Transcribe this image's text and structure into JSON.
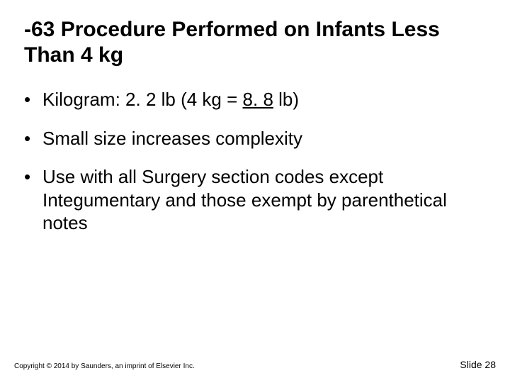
{
  "title": "-63 Procedure Performed on Infants Less Than 4 kg",
  "bullets": {
    "b1_prefix": "Kilogram: 2. 2 lb (4 kg = ",
    "b1_underlined": "8. 8",
    "b1_suffix": " lb)",
    "b2": "Small size increases complexity",
    "b3": "Use with all Surgery section codes except Integumentary and those exempt by parenthetical notes"
  },
  "footer": {
    "copyright": "Copyright © 2014 by Saunders, an imprint of Elsevier Inc.",
    "slide_number": "Slide 28"
  },
  "style": {
    "background_color": "#ffffff",
    "text_color": "#000000",
    "title_fontsize": 30,
    "bullet_fontsize": 26,
    "copyright_fontsize": 10,
    "slidenum_fontsize": 14
  }
}
